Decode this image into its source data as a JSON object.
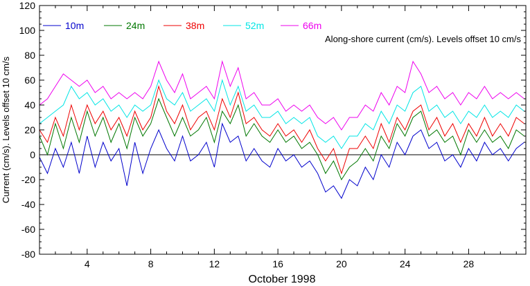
{
  "chart_data": {
    "type": "line",
    "title": "",
    "annotation": "Along-shore current (cm/s). Levels offset 10 cm/s",
    "xlabel": "October 1998",
    "ylabel": "Current (cm/s). Levels offset 10 cm/s",
    "xlim": [
      1,
      31.6
    ],
    "ylim": [
      -80,
      120
    ],
    "xticks": [
      4,
      8,
      12,
      16,
      20,
      24,
      28
    ],
    "yticks": [
      -80,
      -60,
      -40,
      -20,
      0,
      20,
      40,
      60,
      80,
      100,
      120
    ],
    "zero_line": 0,
    "grid": false,
    "legend_position": "top-left",
    "series": [
      {
        "name": "10m",
        "color": "#0000cc",
        "offset": 0,
        "values": [
          [
            1,
            -2
          ],
          [
            1.5,
            -15
          ],
          [
            2,
            5
          ],
          [
            2.5,
            -10
          ],
          [
            3,
            10
          ],
          [
            3.5,
            -15
          ],
          [
            4,
            15
          ],
          [
            4.5,
            -10
          ],
          [
            5,
            10
          ],
          [
            5.5,
            -5
          ],
          [
            6,
            5
          ],
          [
            6.5,
            -25
          ],
          [
            7,
            10
          ],
          [
            7.5,
            -15
          ],
          [
            8,
            5
          ],
          [
            8.5,
            20
          ],
          [
            9,
            5
          ],
          [
            9.5,
            -5
          ],
          [
            10,
            15
          ],
          [
            10.5,
            -5
          ],
          [
            11,
            0
          ],
          [
            11.5,
            10
          ],
          [
            12,
            -10
          ],
          [
            12.5,
            25
          ],
          [
            13,
            10
          ],
          [
            13.5,
            15
          ],
          [
            14,
            -5
          ],
          [
            14.5,
            5
          ],
          [
            15,
            -5
          ],
          [
            15.5,
            -10
          ],
          [
            16,
            5
          ],
          [
            16.5,
            -5
          ],
          [
            17,
            0
          ],
          [
            17.5,
            -10
          ],
          [
            18,
            -5
          ],
          [
            18.5,
            -15
          ],
          [
            19,
            -30
          ],
          [
            19.5,
            -25
          ],
          [
            20,
            -35
          ],
          [
            20.5,
            -20
          ],
          [
            21,
            -25
          ],
          [
            21.5,
            -10
          ],
          [
            22,
            -20
          ],
          [
            22.5,
            0
          ],
          [
            23,
            -10
          ],
          [
            23.5,
            10
          ],
          [
            24,
            0
          ],
          [
            24.5,
            15
          ],
          [
            25,
            20
          ],
          [
            25.5,
            5
          ],
          [
            26,
            10
          ],
          [
            26.5,
            -5
          ],
          [
            27,
            0
          ],
          [
            27.5,
            -10
          ],
          [
            28,
            5
          ],
          [
            28.5,
            -5
          ],
          [
            29,
            10
          ],
          [
            29.5,
            0
          ],
          [
            30,
            5
          ],
          [
            30.5,
            -5
          ],
          [
            31,
            5
          ],
          [
            31.5,
            10
          ]
        ]
      },
      {
        "name": "24m",
        "color": "#007700",
        "offset": 10,
        "values": [
          [
            1,
            15
          ],
          [
            1.5,
            0
          ],
          [
            2,
            25
          ],
          [
            2.5,
            5
          ],
          [
            3,
            30
          ],
          [
            3.5,
            10
          ],
          [
            4,
            35
          ],
          [
            4.5,
            15
          ],
          [
            5,
            30
          ],
          [
            5.5,
            10
          ],
          [
            6,
            25
          ],
          [
            6.5,
            5
          ],
          [
            7,
            30
          ],
          [
            7.5,
            15
          ],
          [
            8,
            25
          ],
          [
            8.5,
            45
          ],
          [
            9,
            30
          ],
          [
            9.5,
            15
          ],
          [
            10,
            30
          ],
          [
            10.5,
            15
          ],
          [
            11,
            20
          ],
          [
            11.5,
            30
          ],
          [
            12,
            10
          ],
          [
            12.5,
            35
          ],
          [
            13,
            25
          ],
          [
            13.5,
            40
          ],
          [
            14,
            15
          ],
          [
            14.5,
            25
          ],
          [
            15,
            15
          ],
          [
            15.5,
            10
          ],
          [
            16,
            20
          ],
          [
            16.5,
            10
          ],
          [
            17,
            15
          ],
          [
            17.5,
            5
          ],
          [
            18,
            10
          ],
          [
            18.5,
            0
          ],
          [
            19,
            -15
          ],
          [
            19.5,
            -5
          ],
          [
            20,
            -20
          ],
          [
            20.5,
            -10
          ],
          [
            21,
            -5
          ],
          [
            21.5,
            5
          ],
          [
            22,
            -5
          ],
          [
            22.5,
            15
          ],
          [
            23,
            5
          ],
          [
            23.5,
            25
          ],
          [
            24,
            15
          ],
          [
            24.5,
            30
          ],
          [
            25,
            35
          ],
          [
            25.5,
            15
          ],
          [
            26,
            20
          ],
          [
            26.5,
            10
          ],
          [
            27,
            15
          ],
          [
            27.5,
            0
          ],
          [
            28,
            20
          ],
          [
            28.5,
            10
          ],
          [
            29,
            20
          ],
          [
            29.5,
            10
          ],
          [
            30,
            15
          ],
          [
            30.5,
            5
          ],
          [
            31,
            20
          ],
          [
            31.5,
            15
          ]
        ]
      },
      {
        "name": "38m",
        "color": "#ee0000",
        "offset": 20,
        "values": [
          [
            1,
            20
          ],
          [
            1.5,
            10
          ],
          [
            2,
            30
          ],
          [
            2.5,
            15
          ],
          [
            3,
            40
          ],
          [
            3.5,
            20
          ],
          [
            4,
            40
          ],
          [
            4.5,
            25
          ],
          [
            5,
            35
          ],
          [
            5.5,
            20
          ],
          [
            6,
            30
          ],
          [
            6.5,
            15
          ],
          [
            7,
            35
          ],
          [
            7.5,
            20
          ],
          [
            8,
            30
          ],
          [
            8.5,
            55
          ],
          [
            9,
            35
          ],
          [
            9.5,
            25
          ],
          [
            10,
            40
          ],
          [
            10.5,
            20
          ],
          [
            11,
            30
          ],
          [
            11.5,
            35
          ],
          [
            12,
            20
          ],
          [
            12.5,
            45
          ],
          [
            13,
            30
          ],
          [
            13.5,
            50
          ],
          [
            14,
            25
          ],
          [
            14.5,
            30
          ],
          [
            15,
            20
          ],
          [
            15.5,
            15
          ],
          [
            16,
            25
          ],
          [
            16.5,
            15
          ],
          [
            17,
            20
          ],
          [
            17.5,
            10
          ],
          [
            18,
            20
          ],
          [
            18.5,
            5
          ],
          [
            19,
            -5
          ],
          [
            19.5,
            5
          ],
          [
            20,
            -15
          ],
          [
            20.5,
            5
          ],
          [
            21,
            5
          ],
          [
            21.5,
            15
          ],
          [
            22,
            5
          ],
          [
            22.5,
            25
          ],
          [
            23,
            10
          ],
          [
            23.5,
            30
          ],
          [
            24,
            20
          ],
          [
            24.5,
            35
          ],
          [
            25,
            40
          ],
          [
            25.5,
            20
          ],
          [
            26,
            30
          ],
          [
            26.5,
            15
          ],
          [
            27,
            25
          ],
          [
            27.5,
            10
          ],
          [
            28,
            25
          ],
          [
            28.5,
            15
          ],
          [
            29,
            30
          ],
          [
            29.5,
            15
          ],
          [
            30,
            25
          ],
          [
            30.5,
            15
          ],
          [
            31,
            30
          ],
          [
            31.5,
            25
          ]
        ]
      },
      {
        "name": "52m",
        "color": "#00e5e5",
        "offset": 30,
        "values": [
          [
            1,
            25
          ],
          [
            1.5,
            30
          ],
          [
            2,
            35
          ],
          [
            2.5,
            40
          ],
          [
            3,
            55
          ],
          [
            3.5,
            45
          ],
          [
            4,
            50
          ],
          [
            4.5,
            40
          ],
          [
            5,
            45
          ],
          [
            5.5,
            35
          ],
          [
            6,
            40
          ],
          [
            6.5,
            30
          ],
          [
            7,
            40
          ],
          [
            7.5,
            35
          ],
          [
            8,
            40
          ],
          [
            8.5,
            60
          ],
          [
            9,
            45
          ],
          [
            9.5,
            40
          ],
          [
            10,
            50
          ],
          [
            10.5,
            35
          ],
          [
            11,
            40
          ],
          [
            11.5,
            45
          ],
          [
            12,
            35
          ],
          [
            12.5,
            60
          ],
          [
            13,
            40
          ],
          [
            13.5,
            55
          ],
          [
            14,
            35
          ],
          [
            14.5,
            40
          ],
          [
            15,
            30
          ],
          [
            15.5,
            30
          ],
          [
            16,
            35
          ],
          [
            16.5,
            25
          ],
          [
            17,
            30
          ],
          [
            17.5,
            25
          ],
          [
            18,
            30
          ],
          [
            18.5,
            15
          ],
          [
            19,
            10
          ],
          [
            19.5,
            15
          ],
          [
            20,
            5
          ],
          [
            20.5,
            15
          ],
          [
            21,
            15
          ],
          [
            21.5,
            25
          ],
          [
            22,
            20
          ],
          [
            22.5,
            35
          ],
          [
            23,
            25
          ],
          [
            23.5,
            40
          ],
          [
            24,
            35
          ],
          [
            24.5,
            50
          ],
          [
            25,
            55
          ],
          [
            25.5,
            35
          ],
          [
            26,
            40
          ],
          [
            26.5,
            30
          ],
          [
            27,
            35
          ],
          [
            27.5,
            25
          ],
          [
            28,
            35
          ],
          [
            28.5,
            30
          ],
          [
            29,
            40
          ],
          [
            29.5,
            30
          ],
          [
            30,
            35
          ],
          [
            30.5,
            30
          ],
          [
            31,
            40
          ],
          [
            31.5,
            35
          ]
        ]
      },
      {
        "name": "66m",
        "color": "#ee00ee",
        "offset": 40,
        "values": [
          [
            1,
            40
          ],
          [
            1.5,
            45
          ],
          [
            2,
            55
          ],
          [
            2.5,
            65
          ],
          [
            3,
            60
          ],
          [
            3.5,
            55
          ],
          [
            4,
            60
          ],
          [
            4.5,
            50
          ],
          [
            5,
            55
          ],
          [
            5.5,
            45
          ],
          [
            6,
            50
          ],
          [
            6.5,
            45
          ],
          [
            7,
            50
          ],
          [
            7.5,
            45
          ],
          [
            8,
            55
          ],
          [
            8.5,
            75
          ],
          [
            9,
            60
          ],
          [
            9.5,
            50
          ],
          [
            10,
            65
          ],
          [
            10.5,
            45
          ],
          [
            11,
            50
          ],
          [
            11.5,
            55
          ],
          [
            12,
            45
          ],
          [
            12.5,
            75
          ],
          [
            13,
            55
          ],
          [
            13.5,
            70
          ],
          [
            14,
            45
          ],
          [
            14.5,
            50
          ],
          [
            15,
            40
          ],
          [
            15.5,
            40
          ],
          [
            16,
            45
          ],
          [
            16.5,
            35
          ],
          [
            17,
            40
          ],
          [
            17.5,
            35
          ],
          [
            18,
            40
          ],
          [
            18.5,
            30
          ],
          [
            19,
            25
          ],
          [
            19.5,
            30
          ],
          [
            20,
            20
          ],
          [
            20.5,
            30
          ],
          [
            21,
            30
          ],
          [
            21.5,
            40
          ],
          [
            22,
            35
          ],
          [
            22.5,
            50
          ],
          [
            23,
            40
          ],
          [
            23.5,
            55
          ],
          [
            24,
            50
          ],
          [
            24.5,
            75
          ],
          [
            25,
            65
          ],
          [
            25.5,
            50
          ],
          [
            26,
            55
          ],
          [
            26.5,
            45
          ],
          [
            27,
            50
          ],
          [
            27.5,
            40
          ],
          [
            28,
            50
          ],
          [
            28.5,
            45
          ],
          [
            29,
            55
          ],
          [
            29.5,
            45
          ],
          [
            30,
            50
          ],
          [
            30.5,
            45
          ],
          [
            31,
            50
          ],
          [
            31.5,
            45
          ]
        ]
      }
    ]
  }
}
